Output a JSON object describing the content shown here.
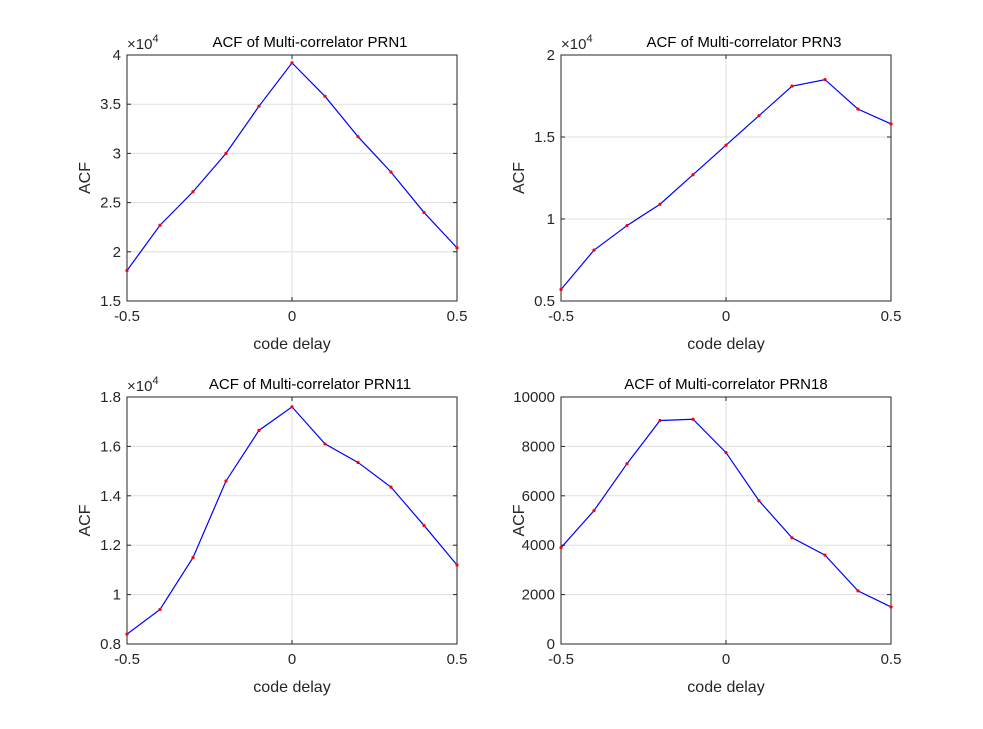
{
  "chart_data": [
    {
      "type": "line",
      "title": "ACF of Multi-correlator PRN1",
      "xlabel": "code delay",
      "ylabel": "ACF",
      "exponent": "4",
      "xlim": [
        -0.5,
        0.5
      ],
      "ylim": [
        1.5,
        4
      ],
      "xticks": [
        -0.5,
        0,
        0.5
      ],
      "xtick_labels": [
        "-0.5",
        "0",
        "0.5"
      ],
      "yticks": [
        1.5,
        2,
        2.5,
        3,
        3.5,
        4
      ],
      "ytick_labels": [
        "1.5",
        "2",
        "2.5",
        "3",
        "3.5",
        "4"
      ],
      "grid": true,
      "line_color": "#0000ff",
      "marker_color": "#ff0000",
      "series": [
        {
          "x": [
            -0.5,
            -0.4,
            -0.3,
            -0.2,
            -0.1,
            0,
            0.1,
            0.2,
            0.3,
            0.4,
            0.5
          ],
          "values": [
            1.81,
            2.27,
            2.61,
            3.0,
            3.48,
            3.92,
            3.58,
            3.17,
            2.81,
            2.4,
            2.04
          ]
        }
      ]
    },
    {
      "type": "line",
      "title": "ACF of Multi-correlator PRN3",
      "xlabel": "code delay",
      "ylabel": "ACF",
      "exponent": "4",
      "xlim": [
        -0.5,
        0.5
      ],
      "ylim": [
        0.5,
        2
      ],
      "xticks": [
        -0.5,
        0,
        0.5
      ],
      "xtick_labels": [
        "-0.5",
        "0",
        "0.5"
      ],
      "yticks": [
        0.5,
        1,
        1.5,
        2
      ],
      "ytick_labels": [
        "0.5",
        "1",
        "1.5",
        "2"
      ],
      "grid": true,
      "line_color": "#0000ff",
      "marker_color": "#ff0000",
      "series": [
        {
          "x": [
            -0.5,
            -0.4,
            -0.3,
            -0.2,
            -0.1,
            0,
            0.1,
            0.2,
            0.3,
            0.4,
            0.5
          ],
          "values": [
            0.57,
            0.81,
            0.96,
            1.09,
            1.27,
            1.45,
            1.63,
            1.81,
            1.85,
            1.67,
            1.58
          ]
        }
      ]
    },
    {
      "type": "line",
      "title": "ACF of Multi-correlator PRN11",
      "xlabel": "code delay",
      "ylabel": "ACF",
      "exponent": "4",
      "xlim": [
        -0.5,
        0.5
      ],
      "ylim": [
        0.8,
        1.8
      ],
      "xticks": [
        -0.5,
        0,
        0.5
      ],
      "xtick_labels": [
        "-0.5",
        "0",
        "0.5"
      ],
      "yticks": [
        0.8,
        1,
        1.2,
        1.4,
        1.6,
        1.8
      ],
      "ytick_labels": [
        "0.8",
        "1",
        "1.2",
        "1.4",
        "1.6",
        "1.8"
      ],
      "grid": true,
      "line_color": "#0000ff",
      "marker_color": "#ff0000",
      "series": [
        {
          "x": [
            -0.5,
            -0.4,
            -0.3,
            -0.2,
            -0.1,
            0,
            0.1,
            0.2,
            0.3,
            0.4,
            0.5
          ],
          "values": [
            0.84,
            0.94,
            1.15,
            1.46,
            1.665,
            1.76,
            1.61,
            1.535,
            1.435,
            1.28,
            1.12
          ]
        }
      ]
    },
    {
      "type": "line",
      "title": "ACF of Multi-correlator PRN18",
      "xlabel": "code delay",
      "ylabel": "ACF",
      "exponent": "",
      "xlim": [
        -0.5,
        0.5
      ],
      "ylim": [
        0,
        10000
      ],
      "xticks": [
        -0.5,
        0,
        0.5
      ],
      "xtick_labels": [
        "-0.5",
        "0",
        "0.5"
      ],
      "yticks": [
        0,
        2000,
        4000,
        6000,
        8000,
        10000
      ],
      "ytick_labels": [
        "0",
        "2000",
        "4000",
        "6000",
        "8000",
        "10000"
      ],
      "grid": true,
      "line_color": "#0000ff",
      "marker_color": "#ff0000",
      "series": [
        {
          "x": [
            -0.5,
            -0.4,
            -0.3,
            -0.2,
            -0.1,
            0,
            0.1,
            0.2,
            0.3,
            0.4,
            0.5
          ],
          "values": [
            3900,
            5400,
            7300,
            9050,
            9100,
            7750,
            5800,
            4300,
            3600,
            2150,
            1500
          ]
        }
      ]
    }
  ]
}
